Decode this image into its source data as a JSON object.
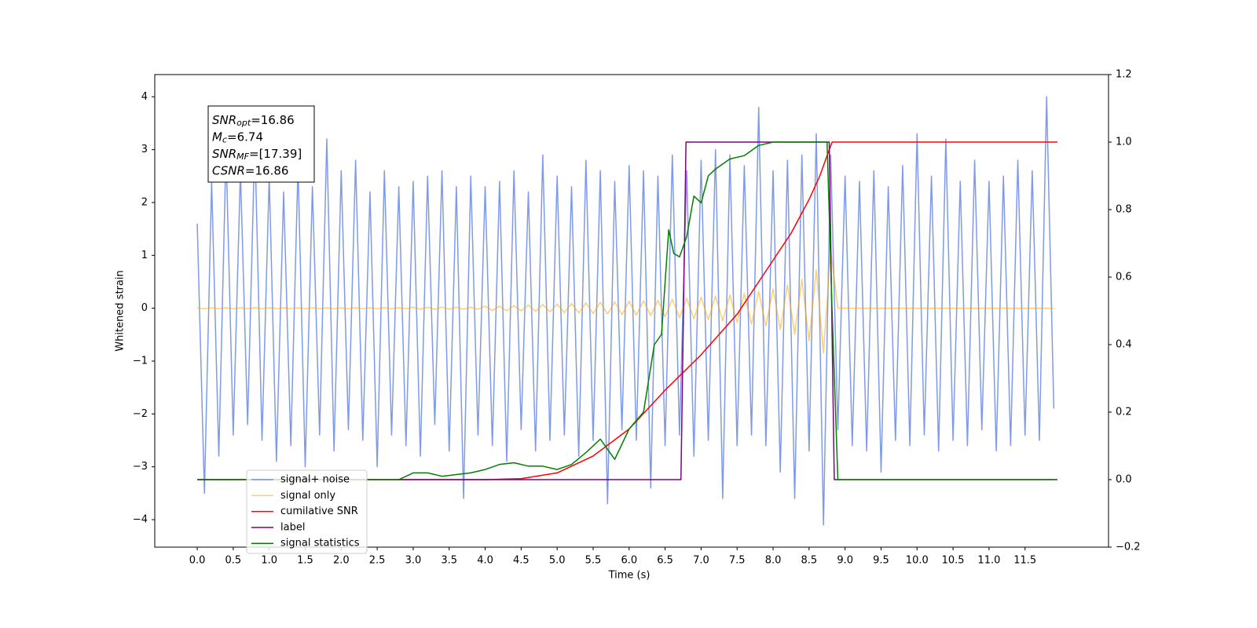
{
  "chart_data": {
    "type": "line",
    "xlabel": "Time (s)",
    "ylabel": "Whitened strain",
    "xlim": [
      -0.59,
      12.66
    ],
    "ylim": [
      -4.52,
      4.42
    ],
    "y2lim": [
      -0.2,
      1.2
    ],
    "xticks": [
      {
        "value": 0,
        "label": "0.0"
      },
      0.5,
      {
        "value": 1,
        "label": "1.0"
      },
      1.5,
      {
        "value": 2,
        "label": "2.0"
      },
      2.5,
      {
        "value": 3,
        "label": "3.0"
      },
      3.5,
      {
        "value": 4,
        "label": "4.0"
      },
      4.5,
      {
        "value": 5,
        "label": "5.0"
      },
      5.5,
      {
        "value": 6,
        "label": "6.0"
      },
      6.5,
      {
        "value": 7,
        "label": "7.0"
      },
      7.5,
      {
        "value": 8,
        "label": "8.0"
      },
      8.5,
      {
        "value": 9,
        "label": "9.0"
      },
      9.5,
      {
        "value": 10,
        "label": "10.0"
      },
      10.5,
      {
        "value": 11,
        "label": "11.0"
      },
      11.5
    ],
    "yticks": [
      {
        "value": -4,
        "label": "−4"
      },
      {
        "value": -3,
        "label": "−3"
      },
      {
        "value": -2,
        "label": "−2"
      },
      {
        "value": -1,
        "label": "−1"
      },
      0,
      1,
      2,
      3,
      4
    ],
    "y2ticks": [
      {
        "value": -0.2,
        "label": "−0.2"
      },
      {
        "value": 0,
        "label": "0.0"
      },
      0.2,
      0.4,
      0.6,
      0.8,
      {
        "value": 1,
        "label": "1.0"
      },
      1.2
    ],
    "annotation": [
      {
        "main": "SNR",
        "sub": "opt",
        "text": "=16.86"
      },
      {
        "main": "M",
        "sub": "c",
        "text": "=6.74"
      },
      {
        "main": "SNR",
        "sub": "MF",
        "text": "=[17.39]"
      },
      {
        "main": "CSNR",
        "text": "=16.86"
      }
    ],
    "x": [
      0,
      0.1,
      0.2,
      0.3,
      0.4,
      0.5,
      0.6,
      0.7,
      0.8,
      0.9,
      1,
      1.1,
      1.2,
      1.3,
      1.4,
      1.5,
      1.6,
      1.7,
      1.8,
      1.9,
      2,
      2.1,
      2.2,
      2.3,
      2.4,
      2.5,
      2.6,
      2.7,
      2.8,
      2.9,
      3,
      3.1,
      3.2,
      3.3,
      3.4,
      3.5,
      3.6,
      3.7,
      3.8,
      3.9,
      4,
      4.1,
      4.2,
      4.3,
      4.4,
      4.5,
      4.6,
      4.7,
      4.8,
      4.9,
      5,
      5.1,
      5.2,
      5.3,
      5.4,
      5.5,
      5.6,
      5.7,
      5.8,
      5.9,
      6,
      6.1,
      6.2,
      6.3,
      6.4,
      6.5,
      6.6,
      6.7,
      6.8,
      6.9,
      7,
      7.1,
      7.2,
      7.3,
      7.4,
      7.5,
      7.6,
      7.7,
      7.8,
      7.9,
      8,
      8.1,
      8.2,
      8.3,
      8.4,
      8.5,
      8.6,
      8.7,
      8.8,
      8.9,
      9,
      9.1,
      9.2,
      9.3,
      9.4,
      9.5,
      9.6,
      9.7,
      9.8,
      9.9,
      10,
      10.1,
      10.2,
      10.3,
      10.4,
      10.5,
      10.6,
      10.7,
      10.8,
      10.9,
      11,
      11.1,
      11.2,
      11.3,
      11.4,
      11.5,
      11.6,
      11.7,
      11.8,
      11.9
    ],
    "series": [
      {
        "name": "signal+ noise",
        "color": "#7895e8",
        "values": [
          1.6,
          -3.5,
          2.4,
          -2.8,
          3.0,
          -2.4,
          2.6,
          -2.2,
          3.2,
          -2.5,
          2.5,
          -2.9,
          2.2,
          -2.6,
          2.7,
          -3.0,
          2.3,
          -2.4,
          3.2,
          -2.7,
          2.6,
          -2.3,
          2.8,
          -2.5,
          2.2,
          -3.0,
          2.6,
          -2.4,
          2.3,
          -2.6,
          2.4,
          -2.8,
          2.5,
          -2.2,
          2.6,
          -2.7,
          2.3,
          -3.6,
          2.5,
          -2.4,
          2.3,
          -2.6,
          2.4,
          -2.9,
          2.6,
          -2.3,
          2.2,
          -2.7,
          2.9,
          -2.5,
          2.5,
          -2.4,
          2.3,
          -2.8,
          2.8,
          -2.5,
          2.6,
          -3.7,
          2.4,
          -2.3,
          2.7,
          -2.5,
          2.6,
          -3.4,
          2.5,
          -2.6,
          2.9,
          -2.4,
          2.6,
          -2.8,
          2.8,
          -2.5,
          3.0,
          -3.6,
          2.9,
          -2.6,
          2.7,
          -2.4,
          3.8,
          -2.6,
          2.6,
          -3.1,
          2.8,
          -3.6,
          2.9,
          -2.7,
          3.3,
          -4.1,
          2.9,
          -2.3,
          2.5,
          -2.6,
          2.4,
          -2.7,
          2.6,
          -3.1,
          2.3,
          -2.5,
          2.7,
          -2.6,
          3.3,
          -2.4,
          2.5,
          -2.7,
          3.2,
          -2.5,
          2.4,
          -2.6,
          2.8,
          -2.3,
          2.4,
          -2.7,
          2.5,
          -2.6,
          2.8,
          -2.4,
          2.6,
          -2.5,
          4.0,
          -1.9
        ]
      },
      {
        "name": "signal only",
        "color": "#ffa500",
        "values": [
          0.01,
          -0.01,
          0.01,
          -0.01,
          0.01,
          -0.01,
          0.01,
          -0.01,
          0.01,
          -0.01,
          0.01,
          -0.01,
          0.01,
          -0.01,
          0.01,
          -0.01,
          0.01,
          -0.01,
          0.01,
          -0.01,
          0.01,
          -0.01,
          0.01,
          -0.01,
          0.01,
          -0.01,
          0.01,
          -0.01,
          0.01,
          -0.01,
          0.02,
          -0.02,
          0.02,
          -0.02,
          0.02,
          -0.02,
          0.02,
          -0.02,
          0.02,
          -0.02,
          0.04,
          -0.04,
          0.04,
          -0.05,
          0.05,
          -0.05,
          0.06,
          -0.06,
          0.07,
          -0.07,
          0.08,
          -0.08,
          0.09,
          -0.09,
          0.1,
          -0.1,
          0.11,
          -0.11,
          0.12,
          -0.12,
          0.13,
          -0.13,
          0.14,
          -0.14,
          0.15,
          -0.16,
          0.17,
          -0.18,
          0.19,
          -0.2,
          0.21,
          -0.22,
          0.23,
          -0.24,
          0.25,
          -0.27,
          0.28,
          -0.3,
          0.32,
          -0.34,
          0.37,
          -0.4,
          0.44,
          -0.49,
          0.55,
          -0.62,
          0.72,
          -0.85,
          1.1,
          0,
          0,
          0,
          0,
          0,
          0,
          0,
          0,
          0,
          0,
          0,
          0,
          0,
          0,
          0,
          0,
          0,
          0,
          0,
          0,
          0,
          0,
          0,
          0,
          0,
          0,
          0,
          0,
          0,
          0,
          0
        ]
      },
      {
        "name": "cumilative SNR",
        "color": "#ff0000",
        "axis": "y2",
        "x": [
          0,
          4,
          4.5,
          5,
          5.5,
          6,
          6.5,
          7,
          7.5,
          8,
          8.25,
          8.5,
          8.65,
          8.75,
          8.82,
          11.95
        ],
        "values": [
          0,
          0,
          0.003,
          0.02,
          0.07,
          0.15,
          0.265,
          0.37,
          0.49,
          0.65,
          0.73,
          0.83,
          0.9,
          0.96,
          1.0,
          1.0
        ]
      },
      {
        "name": "label",
        "color": "#800080",
        "axis": "y2",
        "x": [
          0,
          6.72,
          6.79,
          8.78,
          8.85,
          11.95
        ],
        "values": [
          0,
          0,
          1,
          1,
          0,
          0
        ]
      },
      {
        "name": "signal statistics",
        "color": "#008000",
        "axis": "y2",
        "x": [
          0,
          2.8,
          3.0,
          3.2,
          3.4,
          3.6,
          3.8,
          4.0,
          4.2,
          4.4,
          4.6,
          4.8,
          5.0,
          5.2,
          5.4,
          5.6,
          5.8,
          6.0,
          6.2,
          6.35,
          6.45,
          6.55,
          6.62,
          6.7,
          6.8,
          6.9,
          7.0,
          7.1,
          7.2,
          7.4,
          7.6,
          7.8,
          8.0,
          8.4,
          8.75,
          8.82,
          8.9,
          11.9
        ],
        "values": [
          0,
          0,
          0.02,
          0.02,
          0.01,
          0.015,
          0.02,
          0.03,
          0.045,
          0.05,
          0.04,
          0.04,
          0.03,
          0.045,
          0.08,
          0.12,
          0.06,
          0.15,
          0.2,
          0.4,
          0.43,
          0.74,
          0.67,
          0.66,
          0.72,
          0.84,
          0.82,
          0.9,
          0.92,
          0.95,
          0.96,
          0.99,
          1.0,
          1.0,
          1.0,
          0.5,
          0,
          0
        ]
      }
    ]
  }
}
